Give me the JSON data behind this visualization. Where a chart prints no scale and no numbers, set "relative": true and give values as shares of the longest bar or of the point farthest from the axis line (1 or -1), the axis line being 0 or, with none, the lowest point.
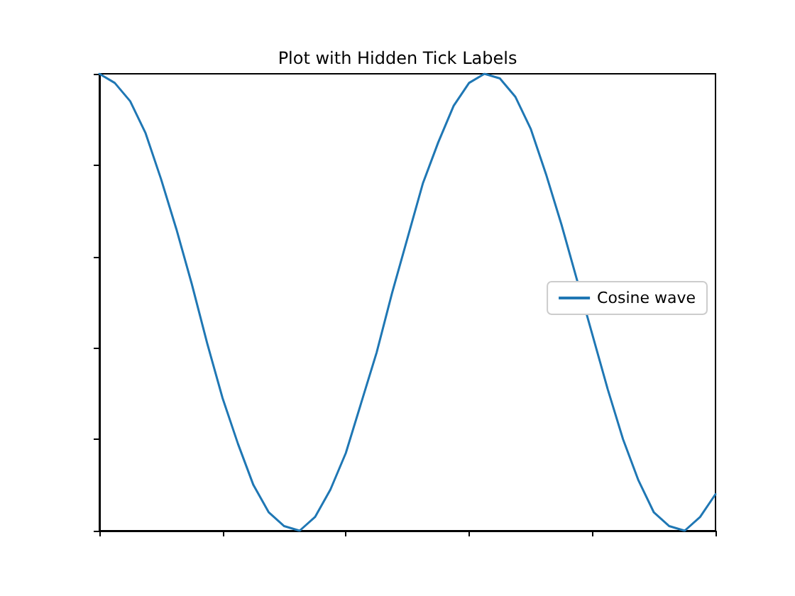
{
  "chart_data": {
    "type": "line",
    "title": "Plot with Hidden Tick Labels",
    "relative": true,
    "grid": false,
    "legend": "right",
    "marker": "none",
    "line_style": "solid",
    "categories": [
      null,
      null,
      null,
      null,
      null,
      null,
      null,
      null,
      null,
      null,
      null,
      null,
      null,
      null,
      null,
      null,
      null,
      null,
      null,
      null,
      null,
      null,
      null,
      null,
      null,
      null,
      null,
      null,
      null,
      null,
      null,
      null,
      null,
      null,
      null,
      null,
      null,
      null,
      null,
      null,
      null
    ],
    "series": [
      {
        "name": "Cosine wave",
        "color": "#1f77b4",
        "values": [
          1,
          0.98,
          0.94,
          0.87,
          0.77,
          0.66,
          0.54,
          0.41,
          0.29,
          0.19,
          0.1,
          0.04,
          0.01,
          0,
          0.03,
          0.09,
          0.17,
          0.28,
          0.39,
          0.52,
          0.64,
          0.76,
          0.85,
          0.93,
          0.98,
          1,
          0.99,
          0.95,
          0.88,
          0.78,
          0.67,
          0.55,
          0.43,
          0.31,
          0.2,
          0.11,
          0.04,
          0.01,
          0,
          0.03,
          0.08
        ]
      }
    ]
  }
}
